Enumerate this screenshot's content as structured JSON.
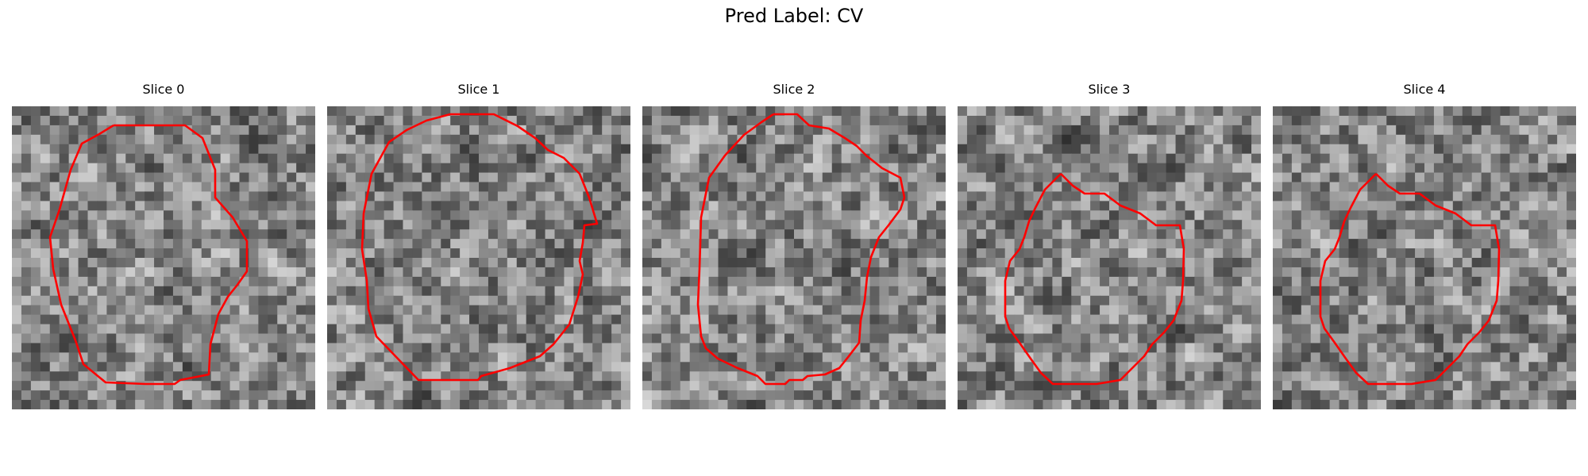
{
  "figure": {
    "title": "Pred Label: CV"
  },
  "slices": [
    {
      "title": "Slice 0",
      "seed": 11
    },
    {
      "title": "Slice 1",
      "seed": 23
    },
    {
      "title": "Slice 2",
      "seed": 37
    },
    {
      "title": "Slice 3",
      "seed": 41
    },
    {
      "title": "Slice 4",
      "seed": 43
    }
  ],
  "colors": {
    "contour": "#ff0000",
    "background": "#ffffff"
  }
}
